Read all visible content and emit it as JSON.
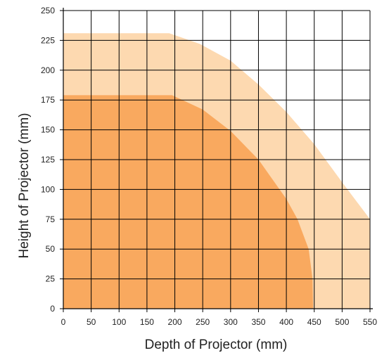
{
  "chart_data": {
    "type": "area",
    "xlabel": "Depth of Projector (mm)",
    "ylabel": "Height of Projector (mm)",
    "xlim": [
      0,
      550
    ],
    "ylim": [
      0,
      250
    ],
    "x_ticks": [
      0,
      50,
      100,
      150,
      200,
      250,
      300,
      350,
      400,
      450,
      500,
      550
    ],
    "y_ticks": [
      0,
      25,
      50,
      75,
      100,
      125,
      150,
      175,
      200,
      225,
      250
    ],
    "grid": true,
    "series": [
      {
        "color": "#fdd9b0",
        "points": [
          [
            0,
            231
          ],
          [
            190,
            231
          ],
          [
            245,
            222
          ],
          [
            300,
            208
          ],
          [
            350,
            188
          ],
          [
            400,
            165
          ],
          [
            450,
            138
          ],
          [
            500,
            106
          ],
          [
            550,
            75
          ],
          [
            550,
            0
          ],
          [
            0,
            0
          ]
        ]
      },
      {
        "color": "#f9a95f",
        "points": [
          [
            0,
            179
          ],
          [
            195,
            179
          ],
          [
            250,
            167
          ],
          [
            300,
            149
          ],
          [
            350,
            125
          ],
          [
            400,
            92
          ],
          [
            420,
            75
          ],
          [
            440,
            50
          ],
          [
            447,
            25
          ],
          [
            448,
            0
          ],
          [
            0,
            0
          ]
        ]
      }
    ]
  }
}
